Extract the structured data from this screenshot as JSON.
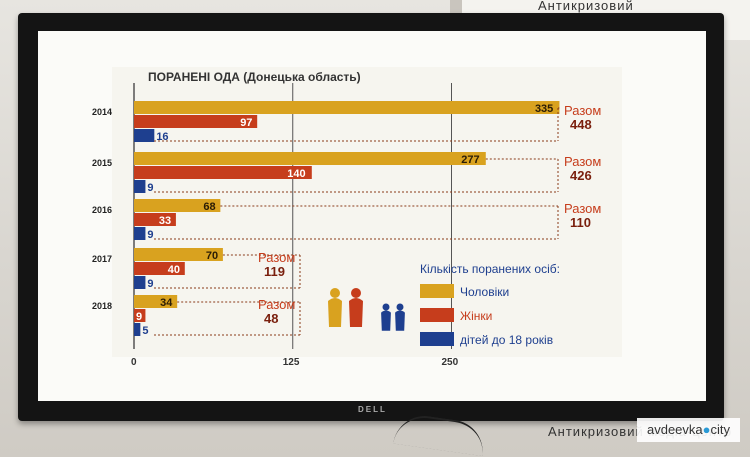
{
  "backdrop": {
    "poster_text_top": "Антикризовий",
    "poster_text_bottom": "Антикризовий медіа-центр",
    "tv_brand": "DELL",
    "watermark_left": "avdeevka",
    "watermark_right": "city"
  },
  "chart_data": {
    "type": "bar",
    "title": "ПОРАНЕНІ ОДА (Донецька область)",
    "orientation": "horizontal",
    "categories": [
      "2014",
      "2015",
      "2016",
      "2017",
      "2018"
    ],
    "series": [
      {
        "name": "Чоловіки",
        "values": [
          335,
          277,
          68,
          70,
          34
        ],
        "color": "#d9a21f"
      },
      {
        "name": "Жінки",
        "values": [
          97,
          140,
          33,
          40,
          9
        ],
        "color": "#c63d1c"
      },
      {
        "name": "дітей до 18 років",
        "values": [
          16,
          9,
          9,
          9,
          5
        ],
        "color": "#1e3f8f"
      }
    ],
    "totals_label": "Разом",
    "totals": [
      448,
      426,
      110,
      119,
      48
    ],
    "x_ticks": [
      "0",
      "125",
      "250"
    ],
    "x_tick_values": [
      0,
      125,
      250
    ],
    "xlim": [
      0,
      340
    ],
    "legend_title": "Кількість поранених осіб:",
    "legend_placement": "bottom-right",
    "grid": true
  }
}
